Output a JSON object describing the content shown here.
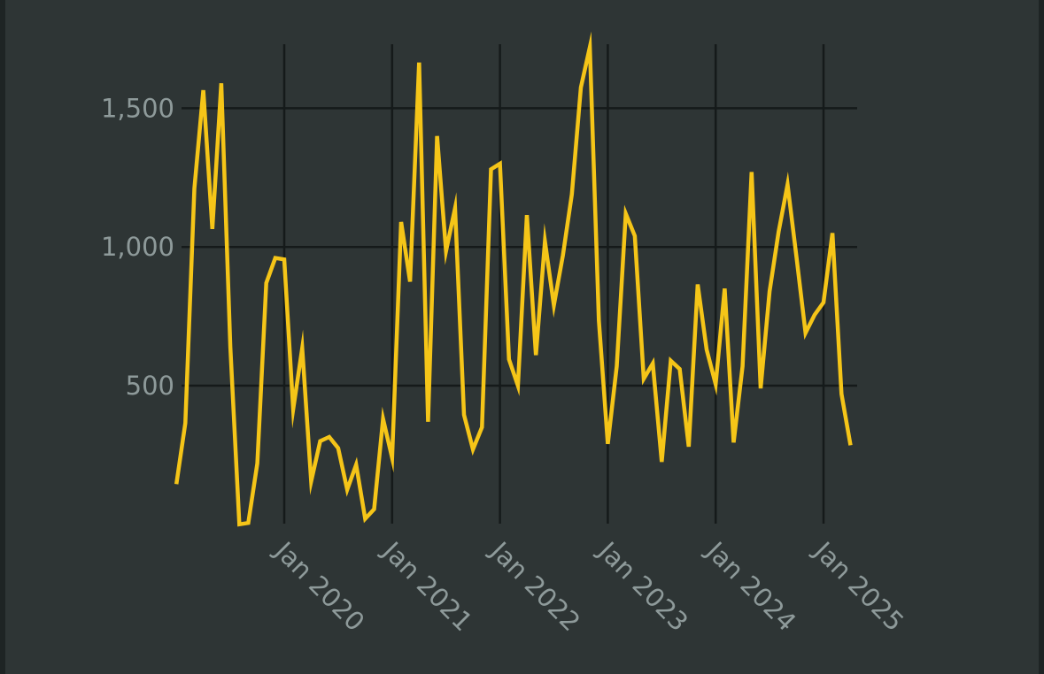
{
  "chart_data": {
    "type": "line",
    "title": "",
    "xlabel": "",
    "ylabel": "",
    "ylim": [
      0,
      1710
    ],
    "xlim": [
      "2019-01",
      "2025-04"
    ],
    "y_ticks": [
      {
        "value": 500,
        "label": "500"
      },
      {
        "value": 1000,
        "label": "1,000"
      },
      {
        "value": 1500,
        "label": "1,500"
      }
    ],
    "x_ticks": [
      {
        "value": "2020-01",
        "label": "Jan 2020"
      },
      {
        "value": "2021-01",
        "label": "Jan 2021"
      },
      {
        "value": "2022-01",
        "label": "Jan 2022"
      },
      {
        "value": "2023-01",
        "label": "Jan 2023"
      },
      {
        "value": "2024-01",
        "label": "Jan 2024"
      },
      {
        "value": "2025-01",
        "label": "Jan 2025"
      }
    ],
    "grid": true,
    "legend": "none",
    "series": [
      {
        "color": "#f5c518",
        "x": [
          "2019-01",
          "2019-02",
          "2019-03",
          "2019-04",
          "2019-05",
          "2019-06",
          "2019-07",
          "2019-08",
          "2019-09",
          "2019-10",
          "2019-11",
          "2019-12",
          "2020-01",
          "2020-02",
          "2020-03",
          "2020-04",
          "2020-05",
          "2020-06",
          "2020-07",
          "2020-08",
          "2020-09",
          "2020-10",
          "2020-11",
          "2020-12",
          "2021-01",
          "2021-02",
          "2021-03",
          "2021-04",
          "2021-05",
          "2021-06",
          "2021-07",
          "2021-08",
          "2021-09",
          "2021-10",
          "2021-11",
          "2021-12",
          "2022-01",
          "2022-02",
          "2022-03",
          "2022-04",
          "2022-05",
          "2022-06",
          "2022-07",
          "2022-08",
          "2022-09",
          "2022-10",
          "2022-11",
          "2022-12",
          "2023-01",
          "2023-02",
          "2023-03",
          "2023-04",
          "2023-05",
          "2023-06",
          "2023-07",
          "2023-08",
          "2023-09",
          "2023-10",
          "2023-11",
          "2023-12",
          "2024-01",
          "2024-02",
          "2024-03",
          "2024-04",
          "2024-05",
          "2024-06",
          "2024-07",
          "2024-08",
          "2024-09",
          "2024-10",
          "2024-11",
          "2024-12",
          "2025-01",
          "2025-02",
          "2025-03",
          "2025-04"
        ],
        "values": [
          145,
          365,
          1210,
          1565,
          1065,
          1590,
          640,
          0,
          5,
          220,
          870,
          960,
          955,
          415,
          635,
          155,
          300,
          315,
          275,
          125,
          215,
          20,
          55,
          380,
          240,
          1090,
          875,
          1665,
          370,
          1400,
          985,
          1140,
          395,
          270,
          350,
          1280,
          1300,
          595,
          500,
          1115,
          610,
          1020,
          790,
          970,
          1190,
          1575,
          1720,
          735,
          290,
          570,
          1120,
          1040,
          525,
          580,
          225,
          590,
          560,
          280,
          865,
          630,
          505,
          850,
          295,
          570,
          1270,
          490,
          840,
          1055,
          1225,
          960,
          690,
          755,
          800,
          1050,
          470,
          285
        ]
      }
    ]
  }
}
